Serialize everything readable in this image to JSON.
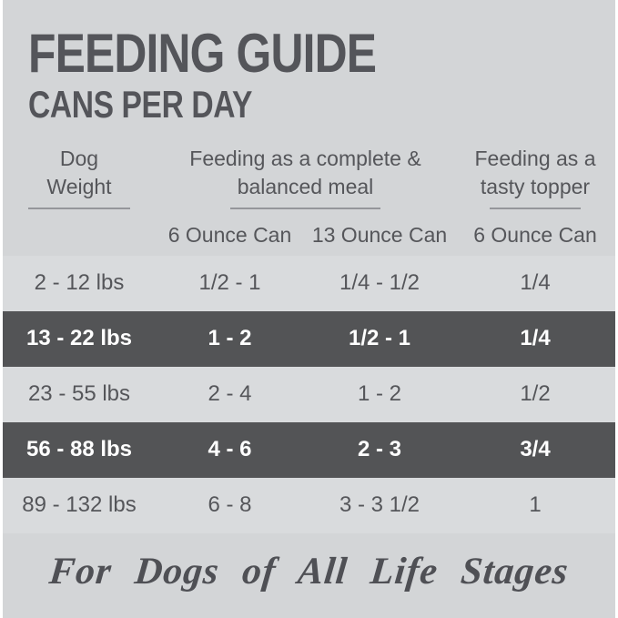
{
  "page": {
    "title": "FEEDING GUIDE",
    "subtitle": "CANS PER DAY",
    "footer_script": "For Dogs of All Life Stages"
  },
  "table": {
    "weight_header": "Dog Weight",
    "meal_header": "Feeding as a complete & balanced meal",
    "topper_header": "Feeding as a tasty topper",
    "subheaders": {
      "six_oz": "6 Ounce Can",
      "thirteen_oz": "13 Ounce Can",
      "topper_six_oz": "6 Ounce Can"
    },
    "rows": [
      {
        "weight": "2 - 12 lbs",
        "six_oz": "1/2 - 1",
        "thirteen_oz": "1/4 - 1/2",
        "topper": "1/4",
        "highlight": false
      },
      {
        "weight": "13 - 22 lbs",
        "six_oz": "1 - 2",
        "thirteen_oz": "1/2 - 1",
        "topper": "1/4",
        "highlight": true
      },
      {
        "weight": "23 - 55 lbs",
        "six_oz": "2 - 4",
        "thirteen_oz": "1 - 2",
        "topper": "1/2",
        "highlight": false
      },
      {
        "weight": "56 - 88 lbs",
        "six_oz": "4 - 6",
        "thirteen_oz": "2 - 3",
        "topper": "3/4",
        "highlight": true
      },
      {
        "weight": "89 - 132 lbs",
        "six_oz": "6 - 8",
        "thirteen_oz": "3 - 3 1/2",
        "topper": "1",
        "highlight": false
      }
    ]
  },
  "colors": {
    "page_background": "#d3d5d7",
    "row_light": "#d9dbdd",
    "row_dark": "#535456",
    "text_dark_gray": "#54555a",
    "text_on_dark": "#ffffff",
    "outer_border": "#ffffff"
  },
  "chart_data": {
    "type": "table",
    "title": "FEEDING GUIDE — CANS PER DAY",
    "columns": [
      "Dog Weight",
      "Feeding as a complete & balanced meal — 6 Ounce Can",
      "Feeding as a complete & balanced meal — 13 Ounce Can",
      "Feeding as a tasty topper — 6 Ounce Can"
    ],
    "rows": [
      [
        "2 - 12 lbs",
        "1/2 - 1",
        "1/4 - 1/2",
        "1/4"
      ],
      [
        "13 - 22 lbs",
        "1 - 2",
        "1/2 - 1",
        "1/4"
      ],
      [
        "23 - 55 lbs",
        "2 - 4",
        "1 - 2",
        "1/2"
      ],
      [
        "56 - 88 lbs",
        "4 - 6",
        "2 - 3",
        "3/4"
      ],
      [
        "89 - 132 lbs",
        "6 - 8",
        "3 - 3 1/2",
        "1"
      ]
    ],
    "highlighted_row_indices": [
      1,
      3
    ],
    "footnote": "For Dogs of All Life Stages"
  }
}
